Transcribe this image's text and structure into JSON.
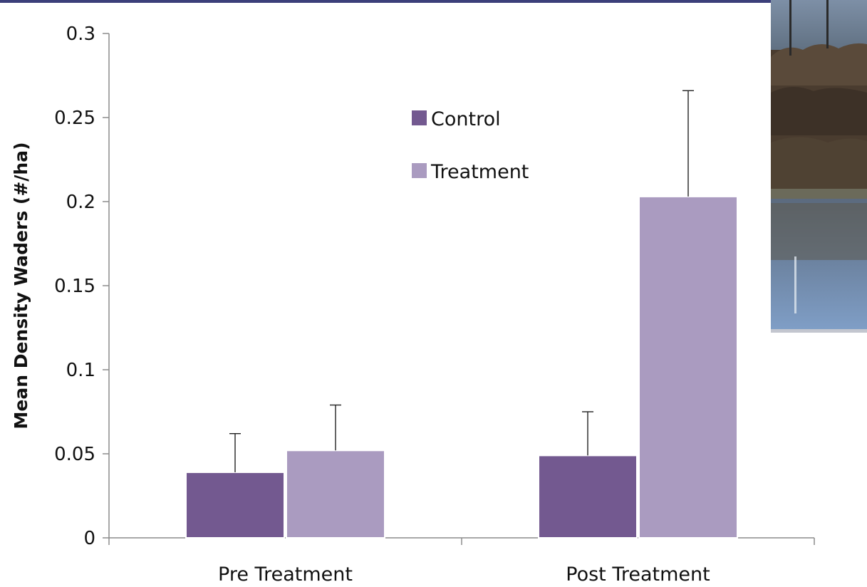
{
  "colors": {
    "control": "#735990",
    "treatment": "#aa9bc0",
    "top_bar": "#3c3f7a",
    "axis": "#8c8c8c"
  },
  "photo": {
    "icon": "wetland-photo-icon"
  },
  "chart_data": {
    "type": "bar",
    "ylabel": "Mean Density Waders (#/ha)",
    "xlabel": "",
    "categories": [
      "Pre Treatment",
      "Post Treatment"
    ],
    "series": [
      {
        "name": "Control",
        "values": [
          0.039,
          0.049
        ],
        "errors": [
          0.023,
          0.026
        ]
      },
      {
        "name": "Treatment",
        "values": [
          0.052,
          0.203
        ],
        "errors": [
          0.027,
          0.063
        ]
      }
    ],
    "ylim": [
      0,
      0.3
    ],
    "yticks": [
      0,
      0.05,
      0.1,
      0.15,
      0.2,
      0.25,
      0.3
    ],
    "ytick_labels": [
      "0",
      "0.05",
      "0.1",
      "0.15",
      "0.2",
      "0.25",
      "0.3"
    ],
    "grid": false,
    "legend": "top-center"
  }
}
